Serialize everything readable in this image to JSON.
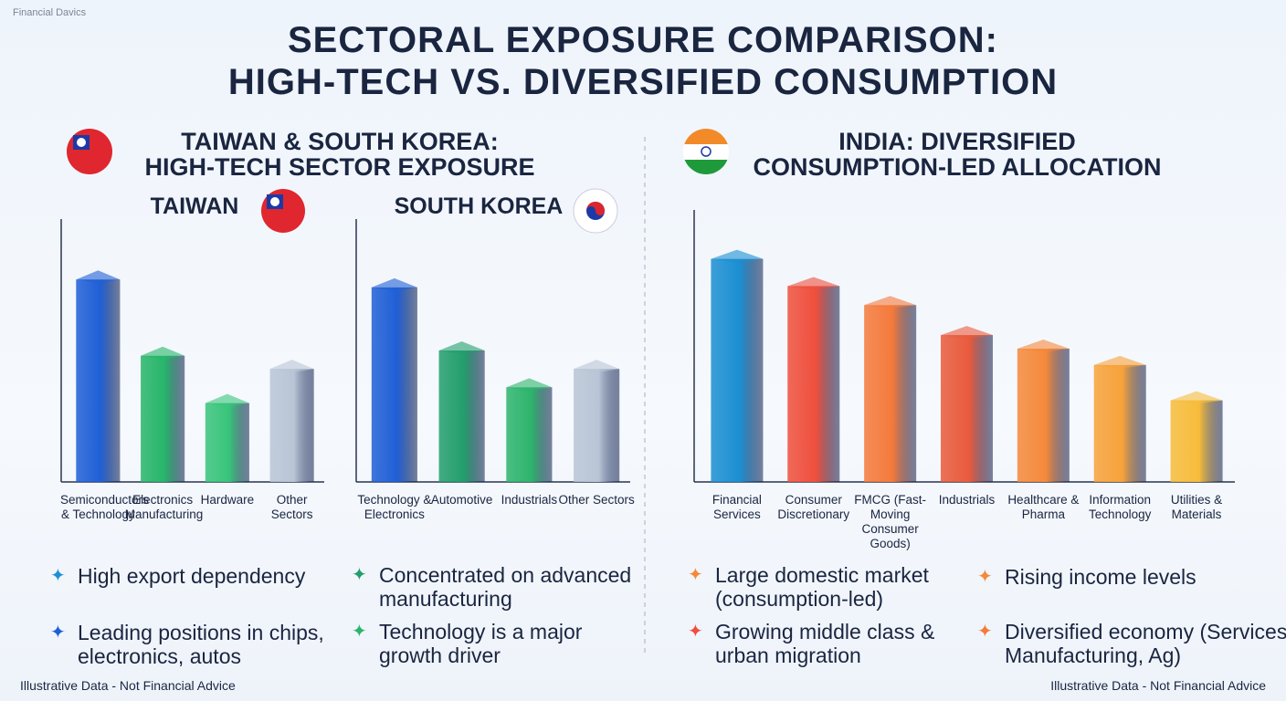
{
  "watermark": "Financial Davics",
  "title": [
    "SECTORAL EXPOSURE COMPARISON:",
    "HIGH-TECH VS. DIVERSIFIED CONSUMPTION"
  ],
  "sections": [
    {
      "heading": [
        "TAIWAN & SOUTH KOREA:",
        "HIGH-TECH SECTOR EXPOSURE"
      ]
    },
    {
      "heading": [
        "INDIA: DIVERSIFIED",
        "CONSUMPTION-LED ALLOCATION"
      ]
    }
  ],
  "chart_data": [
    {
      "type": "bar",
      "title": "TAIWAN",
      "categories": [
        "Semiconductors & Technology",
        "Electronics Manufacturing",
        "Hardware",
        "Other Sectors"
      ],
      "values": [
        77,
        48,
        30,
        43
      ],
      "colors": [
        "#1f5fd6",
        "#27b56a",
        "#38c47a",
        "#b9c5d6"
      ],
      "ylim": [
        0,
        100
      ]
    },
    {
      "type": "bar",
      "title": "SOUTH KOREA",
      "categories": [
        "Technology & Electronics",
        "Automotive",
        "Industrials",
        "Other Sectors"
      ],
      "values": [
        74,
        50,
        36,
        43
      ],
      "colors": [
        "#1f5fd6",
        "#239e6c",
        "#2db46c",
        "#b9c5d6"
      ],
      "ylim": [
        0,
        100
      ]
    },
    {
      "type": "bar",
      "categories": [
        "Financial Services",
        "Consumer Discretionary",
        "FMCG (Fast-Moving Consumer Goods)",
        "Industrials",
        "Healthcare & Pharma",
        "Information Technology",
        "Utilities & Materials"
      ],
      "values": [
        82,
        72,
        65,
        54,
        49,
        43,
        30
      ],
      "colors": [
        "#1b8fd2",
        "#ef4f3c",
        "#f47a3b",
        "#e95a3c",
        "#f5893b",
        "#f7a23a",
        "#f7bc3a"
      ],
      "ylim": [
        0,
        100
      ]
    }
  ],
  "bullets": [
    "High export dependency",
    "Leading positions in chips, electronics, autos",
    "Concentrated on advanced manufacturing",
    "Technology is a major growth driver",
    "Large domestic market (consumption-led)",
    "Rising income levels",
    "Growing middle class & urban migration",
    "Diversified economy (Services, Manufacturing, Ag)"
  ],
  "footer_left": "Illustrative Data - Not Financial Advice",
  "footer_right": "Illustrative Data - Not Financial Advice"
}
